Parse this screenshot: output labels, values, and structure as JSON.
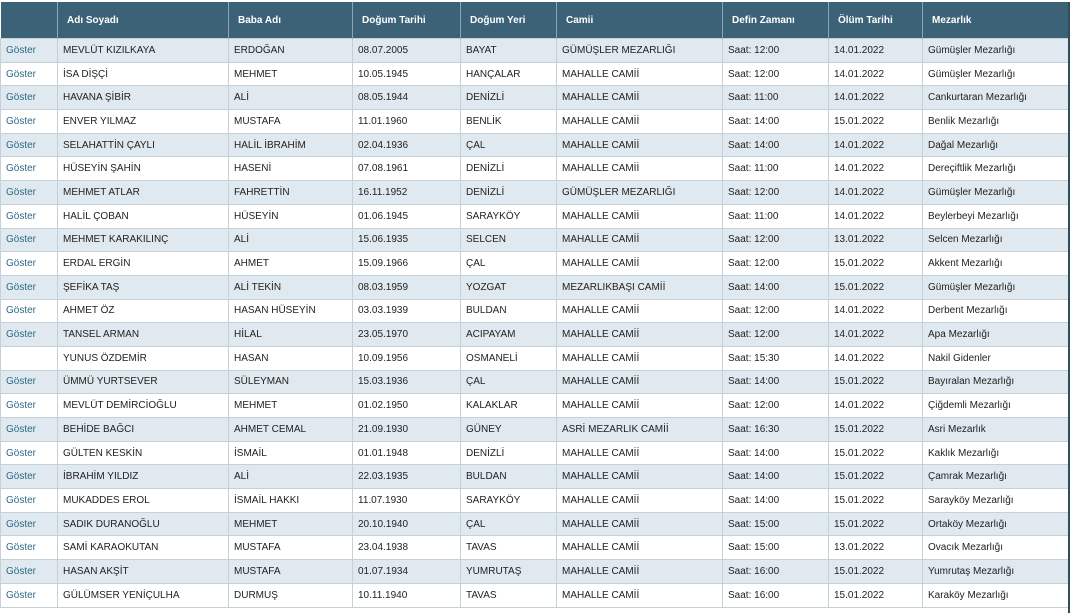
{
  "table": {
    "columns": [
      "Adı Soyadı",
      "Baba Adı",
      "Doğum Tarihi",
      "Doğum Yeri",
      "Camii",
      "Defin Zamanı",
      "Ölüm Tarihi",
      "Mezarlık"
    ],
    "rows": [
      {
        "action": "Göster",
        "cells": [
          "MEVLÜT KIZILKAYA",
          "ERDOĞAN",
          "08.07.2005",
          "BAYAT",
          "GÜMÜŞLER MEZARLIĞI",
          "Saat: 12:00",
          "14.01.2022",
          "Gümüşler Mezarlığı"
        ]
      },
      {
        "action": "Göster",
        "cells": [
          "İSA DİŞÇİ",
          "MEHMET",
          "10.05.1945",
          "HANÇALAR",
          "MAHALLE CAMİİ",
          "Saat: 12:00",
          "14.01.2022",
          "Gümüşler Mezarlığı"
        ]
      },
      {
        "action": "Göster",
        "cells": [
          "HAVANA ŞİBİR",
          "ALİ",
          "08.05.1944",
          "DENİZLİ",
          "MAHALLE CAMİİ",
          "Saat: 11:00",
          "14.01.2022",
          "Cankurtaran Mezarlığı"
        ]
      },
      {
        "action": "Göster",
        "cells": [
          "ENVER YILMAZ",
          "MUSTAFA",
          "11.01.1960",
          "BENLİK",
          "MAHALLE CAMİİ",
          "Saat: 14:00",
          "15.01.2022",
          "Benlik Mezarlığı"
        ]
      },
      {
        "action": "Göster",
        "cells": [
          "SELAHATTİN ÇAYLI",
          "HALİL İBRAHİM",
          "02.04.1936",
          "ÇAL",
          "MAHALLE CAMİİ",
          "Saat: 14:00",
          "14.01.2022",
          "Dağal Mezarlığı"
        ]
      },
      {
        "action": "Göster",
        "cells": [
          "HÜSEYİN ŞAHİN",
          "HASENİ",
          "07.08.1961",
          "DENİZLİ",
          "MAHALLE CAMİİ",
          "Saat: 11:00",
          "14.01.2022",
          "Dereçiftlik Mezarlığı"
        ]
      },
      {
        "action": "Göster",
        "cells": [
          "MEHMET ATLAR",
          "FAHRETTİN",
          "16.11.1952",
          "DENİZLİ",
          "GÜMÜŞLER MEZARLIĞI",
          "Saat: 12:00",
          "14.01.2022",
          "Gümüşler Mezarlığı"
        ]
      },
      {
        "action": "Göster",
        "cells": [
          "HALİL ÇOBAN",
          "HÜSEYİN",
          "01.06.1945",
          "SARAYKÖY",
          "MAHALLE CAMİİ",
          "Saat: 11:00",
          "14.01.2022",
          "Beylerbeyi Mezarlığı"
        ]
      },
      {
        "action": "Göster",
        "cells": [
          "MEHMET KARAKILINÇ",
          "ALİ",
          "15.06.1935",
          "SELCEN",
          "MAHALLE CAMİİ",
          "Saat: 12:00",
          "13.01.2022",
          "Selcen Mezarlığı"
        ]
      },
      {
        "action": "Göster",
        "cells": [
          "ERDAL ERGİN",
          "AHMET",
          "15.09.1966",
          "ÇAL",
          "MAHALLE CAMİİ",
          "Saat: 12:00",
          "15.01.2022",
          "Akkent Mezarlığı"
        ]
      },
      {
        "action": "Göster",
        "cells": [
          "ŞEFİKA TAŞ",
          "ALİ TEKİN",
          "08.03.1959",
          "YOZGAT",
          "MEZARLIKBAŞI CAMİİ",
          "Saat: 14:00",
          "15.01.2022",
          "Gümüşler Mezarlığı"
        ]
      },
      {
        "action": "Göster",
        "cells": [
          "AHMET ÖZ",
          "HASAN HÜSEYİN",
          "03.03.1939",
          "BULDAN",
          "MAHALLE CAMİİ",
          "Saat: 12:00",
          "14.01.2022",
          "Derbent Mezarlığı"
        ]
      },
      {
        "action": "Göster",
        "cells": [
          "TANSEL ARMAN",
          "HİLAL",
          "23.05.1970",
          "ACIPAYAM",
          "MAHALLE CAMİİ",
          "Saat: 12:00",
          "14.01.2022",
          "Apa Mezarlığı"
        ]
      },
      {
        "cells": [
          "YUNUS ÖZDEMİR",
          "HASAN",
          "10.09.1956",
          "OSMANELİ",
          "MAHALLE CAMİİ",
          "Saat: 15:30",
          "14.01.2022",
          "Nakil Gidenler"
        ]
      },
      {
        "action": "Göster",
        "cells": [
          "ÜMMÜ YURTSEVER",
          "SÜLEYMAN",
          "15.03.1936",
          "ÇAL",
          "MAHALLE CAMİİ",
          "Saat: 14:00",
          "15.01.2022",
          "Bayıralan Mezarlığı"
        ]
      },
      {
        "action": "Göster",
        "cells": [
          "MEVLÜT DEMİRCİOĞLU",
          "MEHMET",
          "01.02.1950",
          "KALAKLAR",
          "MAHALLE CAMİİ",
          "Saat: 12:00",
          "14.01.2022",
          "Çiğdemli Mezarlığı"
        ]
      },
      {
        "action": "Göster",
        "cells": [
          "BEHİDE BAĞCI",
          "AHMET CEMAL",
          "21.09.1930",
          "GÜNEY",
          "ASRİ MEZARLIK CAMİİ",
          "Saat: 16:30",
          "15.01.2022",
          "Asri Mezarlık"
        ]
      },
      {
        "action": "Göster",
        "cells": [
          "GÜLTEN KESKİN",
          "İSMAİL",
          "01.01.1948",
          "DENİZLİ",
          "MAHALLE CAMİİ",
          "Saat: 14:00",
          "15.01.2022",
          "Kaklık Mezarlığı"
        ]
      },
      {
        "action": "Göster",
        "cells": [
          "İBRAHİM YILDIZ",
          "ALİ",
          "22.03.1935",
          "BULDAN",
          "MAHALLE CAMİİ",
          "Saat: 14:00",
          "15.01.2022",
          "Çamrak Mezarlığı"
        ]
      },
      {
        "action": "Göster",
        "cells": [
          "MUKADDES EROL",
          "İSMAİL HAKKI",
          "11.07.1930",
          "SARAYKÖY",
          "MAHALLE CAMİİ",
          "Saat: 14:00",
          "15.01.2022",
          "Sarayköy Mezarlığı"
        ]
      },
      {
        "action": "Göster",
        "cells": [
          "SADIK DURANOĞLU",
          "MEHMET",
          "20.10.1940",
          "ÇAL",
          "MAHALLE CAMİİ",
          "Saat: 15:00",
          "15.01.2022",
          "Ortaköy Mezarlığı"
        ]
      },
      {
        "action": "Göster",
        "cells": [
          "SAMİ KARAOKUTAN",
          "MUSTAFA",
          "23.04.1938",
          "TAVAS",
          "MAHALLE CAMİİ",
          "Saat: 15:00",
          "13.01.2022",
          "Ovacık Mezarlığı"
        ]
      },
      {
        "action": "Göster",
        "cells": [
          "HASAN AKŞİT",
          "MUSTAFA",
          "01.07.1934",
          "YUMRUTAŞ",
          "MAHALLE CAMİİ",
          "Saat: 16:00",
          "15.01.2022",
          "Yumrutaş Mezarlığı"
        ]
      },
      {
        "action": "Göster",
        "cells": [
          "GÜLÜMSER YENİÇULHA",
          "DURMUŞ",
          "10.11.1940",
          "TAVAS",
          "MAHALLE CAMİİ",
          "Saat: 16:00",
          "15.01.2022",
          "Karaköy Mezarlığı"
        ]
      }
    ]
  }
}
